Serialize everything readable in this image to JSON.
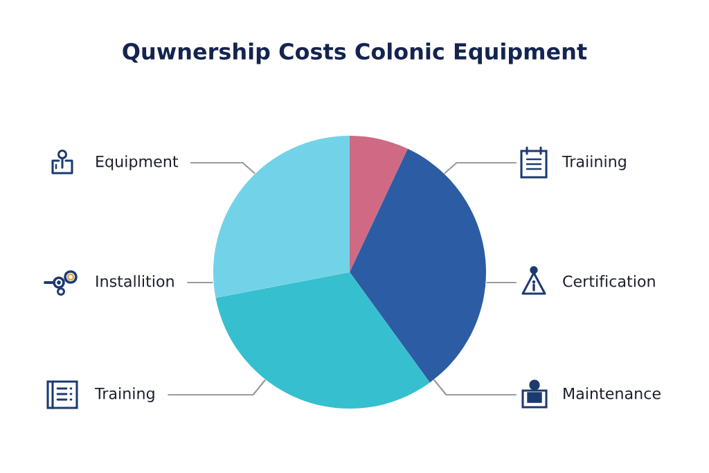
{
  "chart_data": {
    "type": "pie",
    "title": "Quwnership Costs Colonic Equipment",
    "categories": [
      null,
      null,
      null,
      null
    ],
    "values": [
      7,
      33,
      32,
      28
    ],
    "colors": [
      "#d06a84",
      "#2c5ca3",
      "#36bfcf",
      "#72d3e8"
    ],
    "annotations": [
      "Equipment",
      "Traiining",
      "Installition",
      "Certification",
      "Training",
      "Maintenance"
    ]
  }
}
